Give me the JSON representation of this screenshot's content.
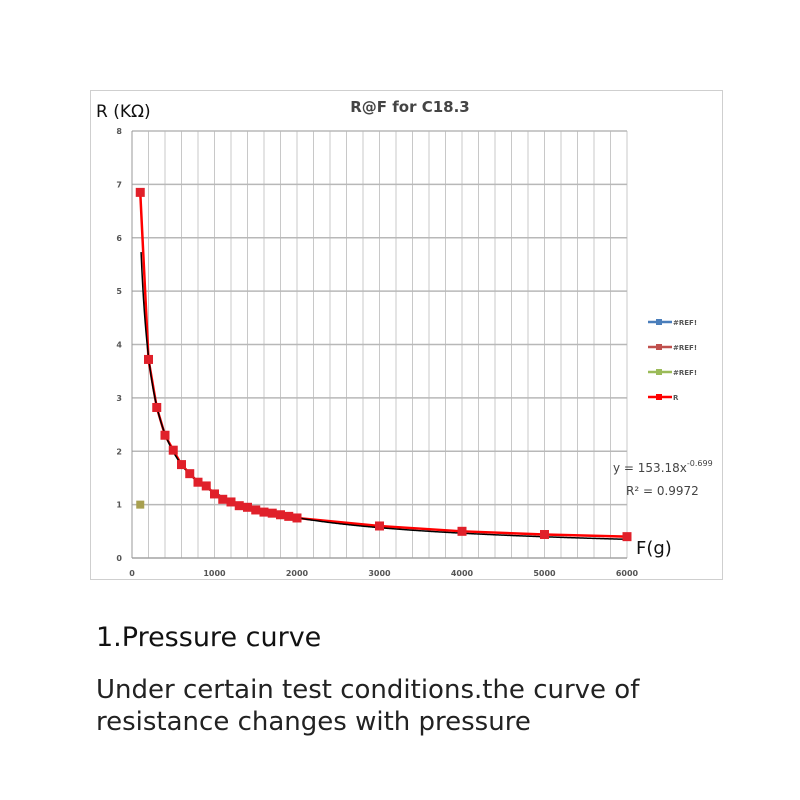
{
  "chart_data": {
    "type": "line",
    "title": "R@F  for C18.3",
    "ylabel": "R (KΩ)",
    "xlabel": "F(g)",
    "xlim": [
      0,
      6000
    ],
    "ylim": [
      0,
      8
    ],
    "x_ticks": [
      "0",
      "1000",
      "2000",
      "3000",
      "4000",
      "5000",
      "6000"
    ],
    "y_ticks": [
      "0",
      "1",
      "2",
      "3",
      "4",
      "5",
      "6",
      "7",
      "8"
    ],
    "grid": true,
    "legend_position": "right",
    "legend": [
      {
        "name": "#REF!",
        "color": "#4a7ebb",
        "marker": "diamond"
      },
      {
        "name": "#REF!",
        "color": "#c0504d",
        "marker": "square"
      },
      {
        "name": "#REF!",
        "color": "#9bbb59",
        "marker": "triangle"
      },
      {
        "name": "R",
        "color": "#ff0000",
        "marker": "square"
      }
    ],
    "series": [
      {
        "name": "R",
        "color": "#ff0000",
        "x": [
          100,
          200,
          300,
          400,
          500,
          600,
          700,
          800,
          900,
          1000,
          1100,
          1200,
          1300,
          1400,
          1500,
          1600,
          1700,
          1800,
          1900,
          2000,
          3000,
          4000,
          5000,
          6000
        ],
        "y": [
          6.85,
          3.72,
          2.82,
          2.3,
          2.02,
          1.75,
          1.58,
          1.42,
          1.35,
          1.2,
          1.1,
          1.05,
          0.98,
          0.95,
          0.9,
          0.86,
          0.84,
          0.81,
          0.78,
          0.75,
          0.6,
          0.5,
          0.44,
          0.4
        ]
      },
      {
        "name": "#REF!",
        "color": "#9bbb59",
        "x": [
          100
        ],
        "y": [
          1.0
        ]
      }
    ],
    "trendline": {
      "type": "power",
      "coefficient": 153.18,
      "exponent": -0.699,
      "color": "#000000",
      "equation_label": "y = 153.18x",
      "exponent_label": "-0.699",
      "r2_label": "R² = 0.9972"
    }
  },
  "caption": {
    "title": "1.Pressure curve",
    "body": "Under certain test conditions.the curve of resistance changes with pressure"
  }
}
